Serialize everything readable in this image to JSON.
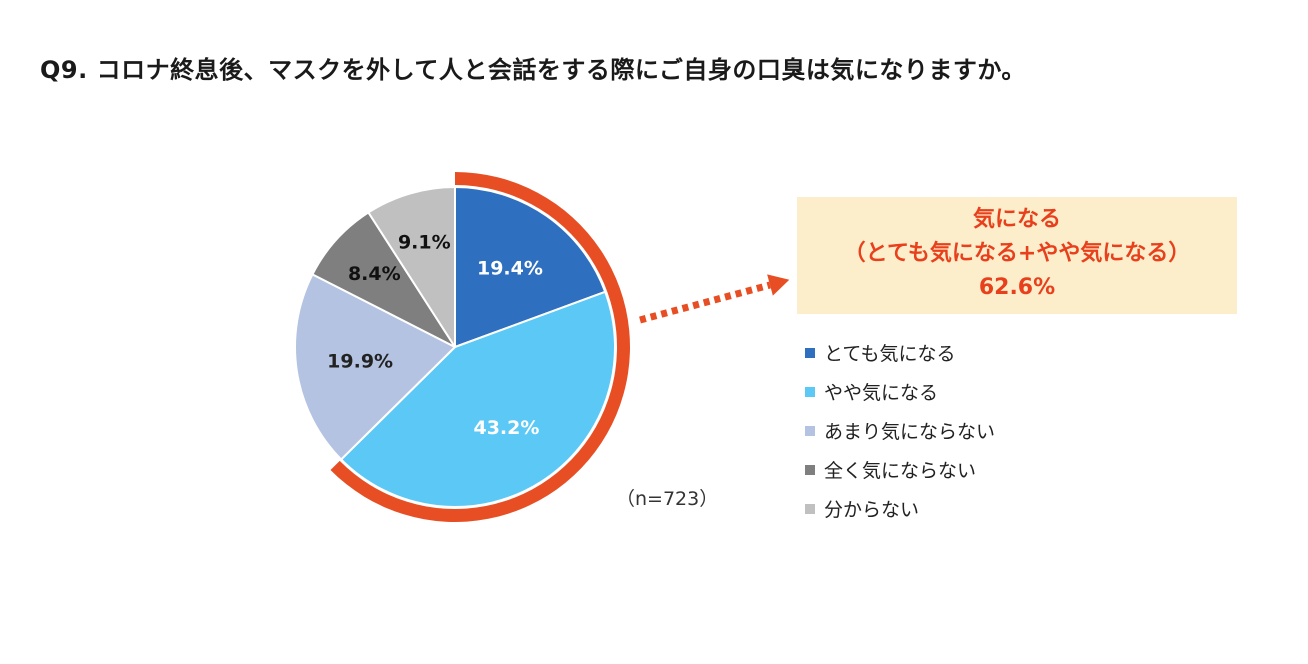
{
  "page": {
    "title": "Q9. コロナ終息後、マスクを外して人と会話をする際にご自身の口臭は気になりますか。"
  },
  "chart_data": {
    "type": "pie",
    "title": "",
    "start_angle_deg": 0,
    "direction": "clockwise",
    "slices": [
      {
        "label": "とても気になる",
        "value": 19.4,
        "value_label": "19.4%",
        "color": "#2f6fbf",
        "label_color": "#ffffff"
      },
      {
        "label": "やや気になる",
        "value": 43.2,
        "value_label": "43.2%",
        "color": "#5bc8f5",
        "label_color": "#ffffff"
      },
      {
        "label": "あまり気にならない",
        "value": 19.9,
        "value_label": "19.9%",
        "color": "#b4c3e2",
        "label_color": "#222222"
      },
      {
        "label": "全く気にならない",
        "value": 8.4,
        "value_label": "8.4%",
        "color": "#7f7f7f",
        "label_color": "#111111"
      },
      {
        "label": "分からない",
        "value": 9.1,
        "value_label": "9.1%",
        "color": "#c0c0c0",
        "label_color": "#111111"
      }
    ],
    "highlight": {
      "slice_indices": [
        0,
        1
      ],
      "ring_color": "#e84e23",
      "title": "気になる",
      "subtitle": "（とても気になる+やや気になる）",
      "value_label": "62.6%",
      "box_color": "#fdeecb",
      "text_color": "#e8401c"
    },
    "sample_size_label": "（n=723）",
    "legend_position": "right"
  }
}
